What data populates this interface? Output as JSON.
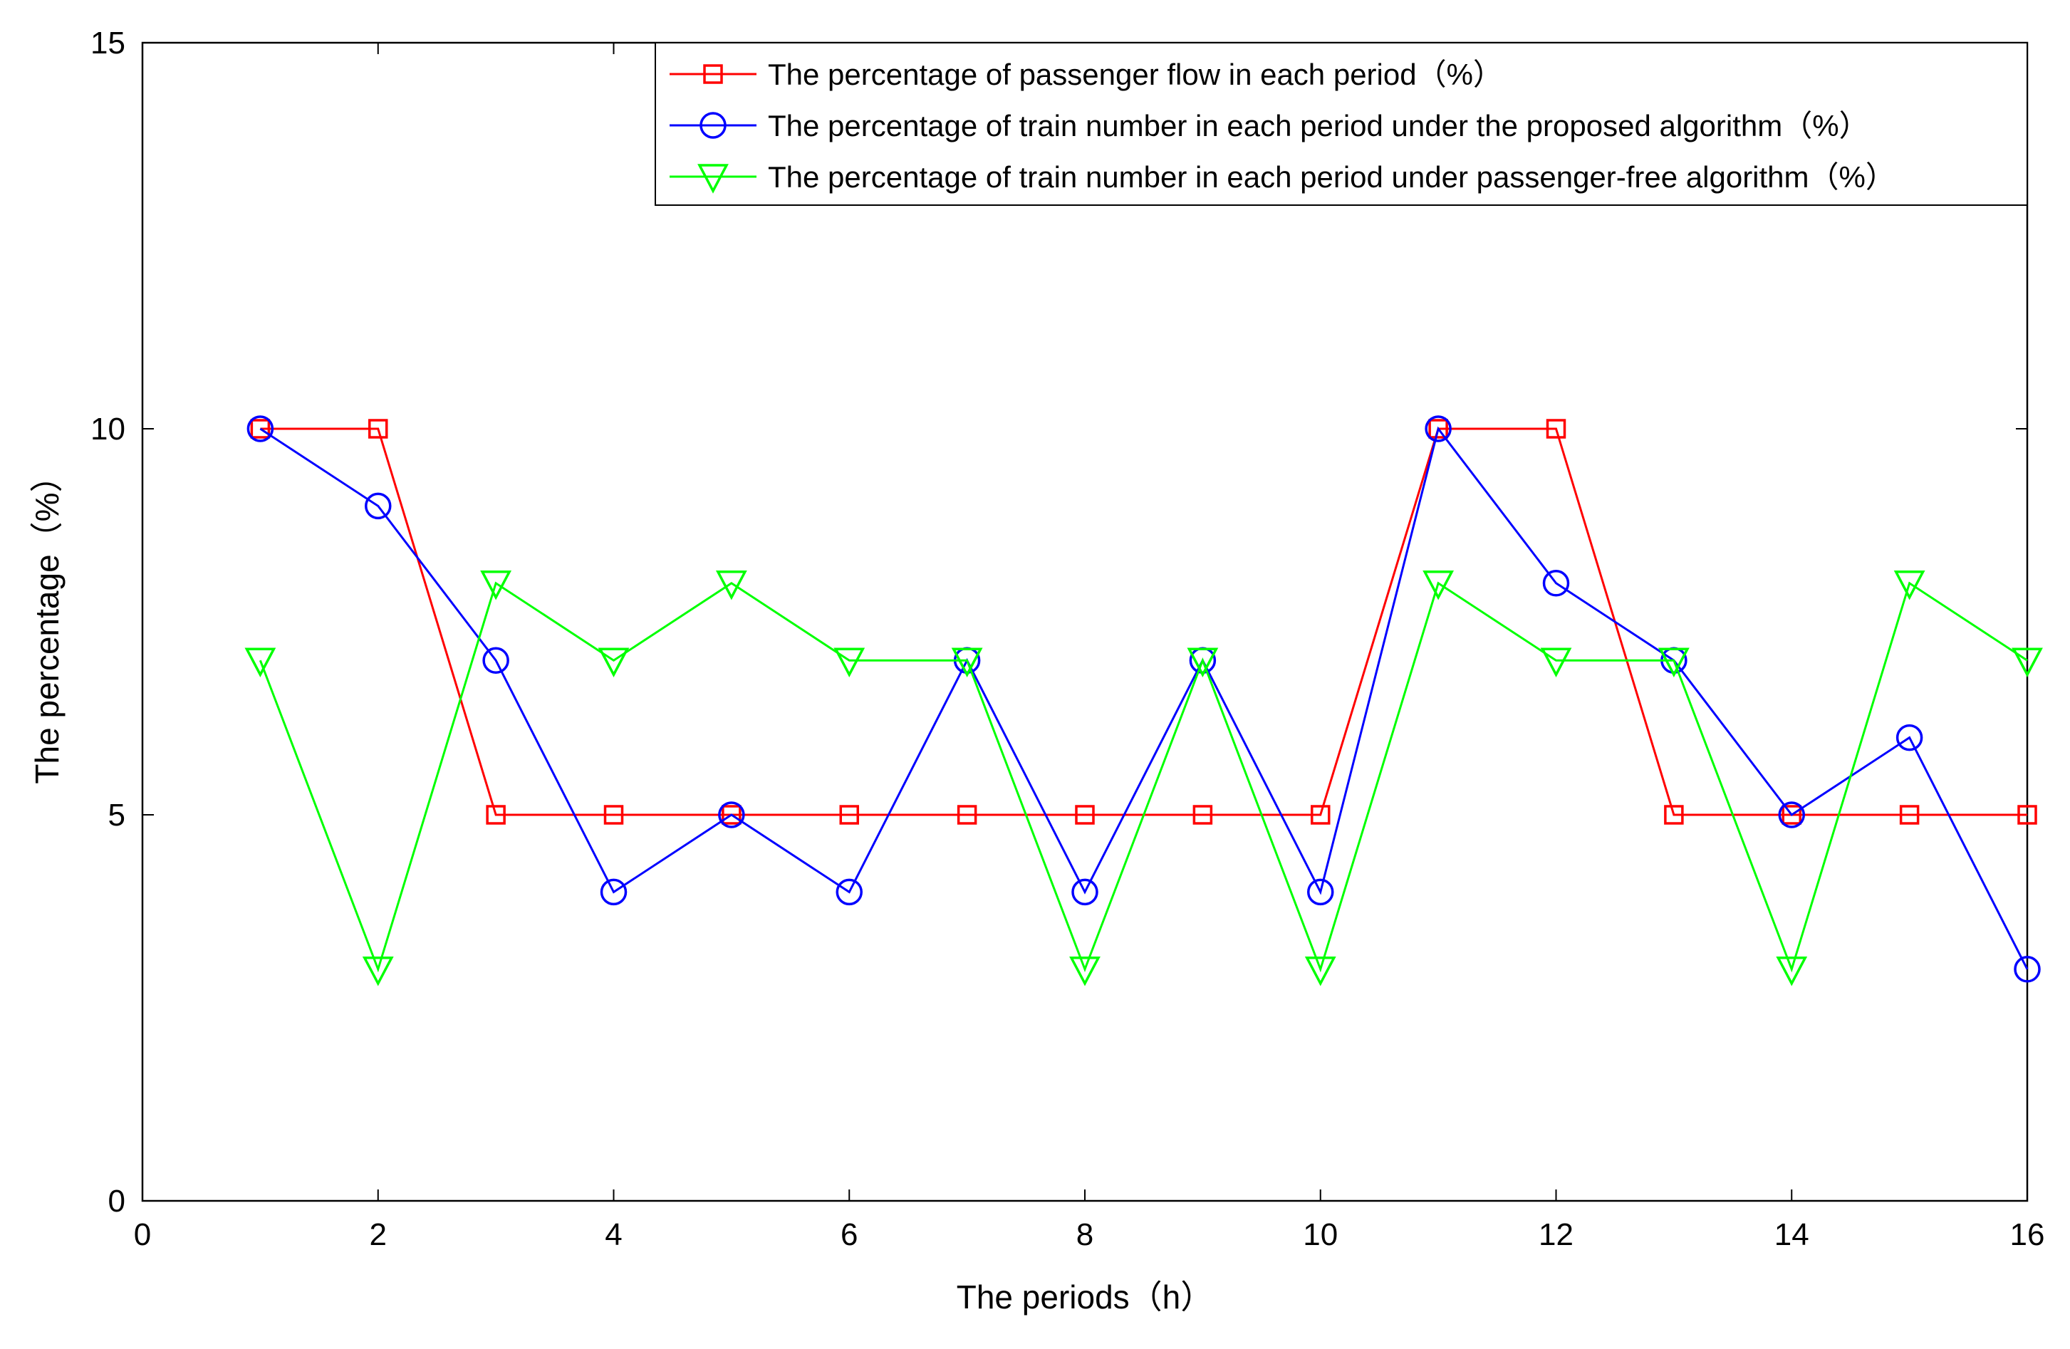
{
  "chart_data": {
    "type": "line",
    "xlabel": "The periods（h）",
    "ylabel": "The percentage（%）",
    "xlim": [
      0,
      16
    ],
    "ylim": [
      0,
      15
    ],
    "xticks": [
      0,
      2,
      4,
      6,
      8,
      10,
      12,
      14,
      16
    ],
    "yticks": [
      0,
      5,
      10,
      15
    ],
    "grid": false,
    "legend_position": "top-right",
    "x": [
      1,
      2,
      3,
      4,
      5,
      6,
      7,
      8,
      9,
      10,
      11,
      12,
      13,
      14,
      15,
      16
    ],
    "series": [
      {
        "name": "The percentage of passenger flow in each period（%）",
        "color": "#ff0000",
        "marker": "square",
        "values": [
          10,
          10,
          5,
          5,
          5,
          5,
          5,
          5,
          5,
          5,
          10,
          10,
          5,
          5,
          5,
          5
        ]
      },
      {
        "name": "The percentage of train number in each period under the proposed algorithm（%）",
        "color": "#0000ff",
        "marker": "circle",
        "values": [
          10,
          9,
          7,
          4,
          5,
          4,
          7,
          4,
          7,
          4,
          10,
          8,
          7,
          5,
          6,
          3
        ]
      },
      {
        "name": "The percentage of train number in each period under passenger-free algorithm（%）",
        "color": "#00ff00",
        "marker": "triangle-down",
        "values": [
          7,
          3,
          8,
          7,
          8,
          7,
          7,
          3,
          7,
          3,
          8,
          7,
          7,
          3,
          8,
          7
        ]
      }
    ]
  }
}
